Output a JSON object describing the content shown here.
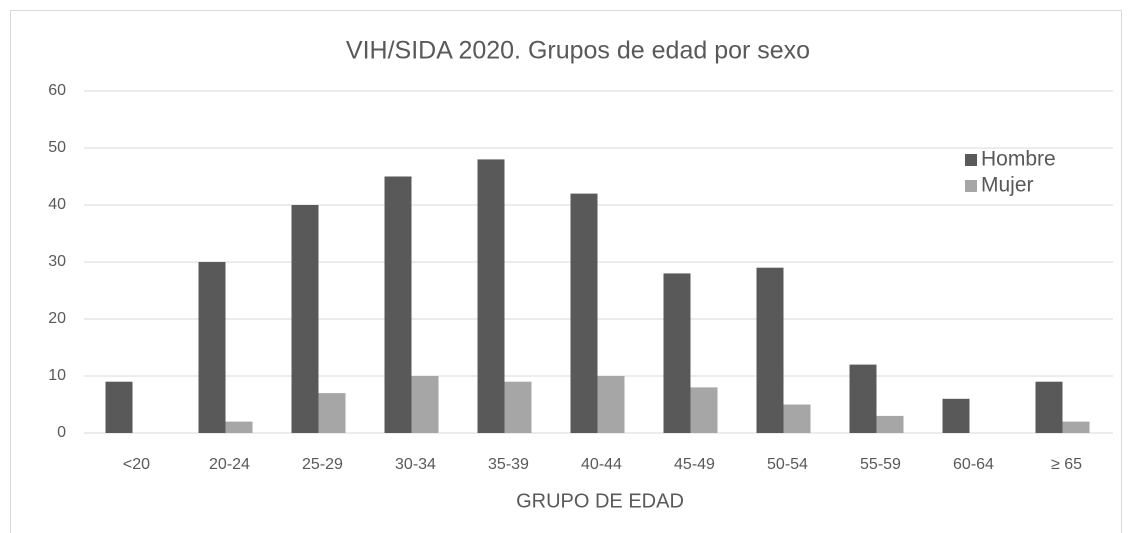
{
  "chart_data": {
    "type": "bar",
    "title": "VIH/SIDA 2020. Grupos de edad por sexo",
    "x_label": "GRUPO DE EDAD",
    "categories": [
      "<20",
      "20-24",
      "25-29",
      "30-34",
      "35-39",
      "40-44",
      "45-49",
      "50-54",
      "55-59",
      "60-64",
      "≥ 65"
    ],
    "series": [
      {
        "name": "Hombre",
        "color": "#595959",
        "values": [
          9,
          30,
          40,
          45,
          48,
          42,
          28,
          29,
          12,
          6,
          9
        ]
      },
      {
        "name": "Mujer",
        "color": "#a6a6a6",
        "values": [
          0,
          2,
          7,
          10,
          9,
          10,
          8,
          5,
          3,
          0,
          2
        ]
      }
    ],
    "ylim": [
      0,
      60
    ],
    "yticks": [
      0,
      10,
      20,
      30,
      40,
      50,
      60
    ],
    "grid": true,
    "legend": "upper right"
  }
}
